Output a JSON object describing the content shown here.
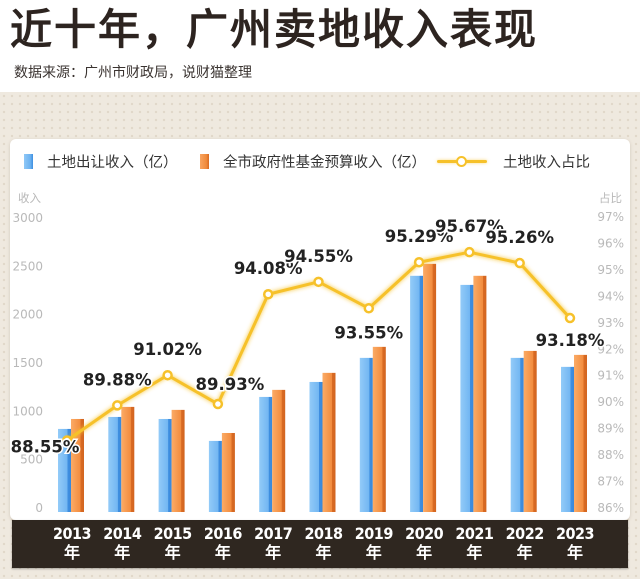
{
  "header": {
    "title": "近十年，广州卖地收入表现",
    "subtitle": "数据来源：广州市财政局，说财猫整理"
  },
  "colors": {
    "land_revenue": "#6cb2f0",
    "fund_budget": "#f08a3c",
    "ratio_line": "#f6c12a",
    "axis_text": "#b9b9b9",
    "xaxis_band": "#2f2720"
  },
  "chart_data": {
    "type": "bar",
    "title": "近十年，广州卖地收入表现",
    "categories": [
      "2013年",
      "2014年",
      "2015年",
      "2016年",
      "2017年",
      "2018年",
      "2019年",
      "2020年",
      "2021年",
      "2022年",
      "2023年"
    ],
    "category_years": [
      "2013",
      "2014",
      "2015",
      "2016",
      "2017",
      "2018",
      "2019",
      "2020",
      "2021",
      "2022",
      "2023"
    ],
    "category_unit": "年",
    "series": [
      {
        "name": "土地出让收入（亿）",
        "type": "bar",
        "axis": "left",
        "values": [
          818,
          942,
          921,
          694,
          1149,
          1304,
          1553,
          2402,
          2308,
          1553,
          1460
        ]
      },
      {
        "name": "全市政府性基金预算收入（亿）",
        "type": "bar",
        "axis": "left",
        "values": [
          921,
          1046,
          1015,
          776,
          1222,
          1398,
          1667,
          2526,
          2402,
          1625,
          1584
        ]
      },
      {
        "name": "土地收入占比",
        "type": "line",
        "axis": "right",
        "values": [
          88.55,
          89.88,
          91.02,
          89.93,
          94.08,
          94.55,
          93.55,
          95.29,
          95.67,
          95.26,
          93.18
        ],
        "labels": [
          "88.55%",
          "89.88%",
          "91.02%",
          "89.93%",
          "94.08%",
          "94.55%",
          "93.55%",
          "95.29%",
          "95.67%",
          "95.26%",
          "93.18%"
        ]
      }
    ],
    "ylabel": "收入",
    "ylabel_right": "占比",
    "ylim": [
      0,
      3000
    ],
    "yticks": [
      "0",
      "500",
      "1000",
      "1500",
      "2000",
      "2500",
      "3000"
    ],
    "ylim_right": [
      86,
      97
    ],
    "yticks_right": [
      "86%",
      "87%",
      "88%",
      "89%",
      "90%",
      "91%",
      "92%",
      "93%",
      "94%",
      "95%",
      "96%",
      "97%"
    ],
    "grid": false,
    "legend": "top"
  }
}
